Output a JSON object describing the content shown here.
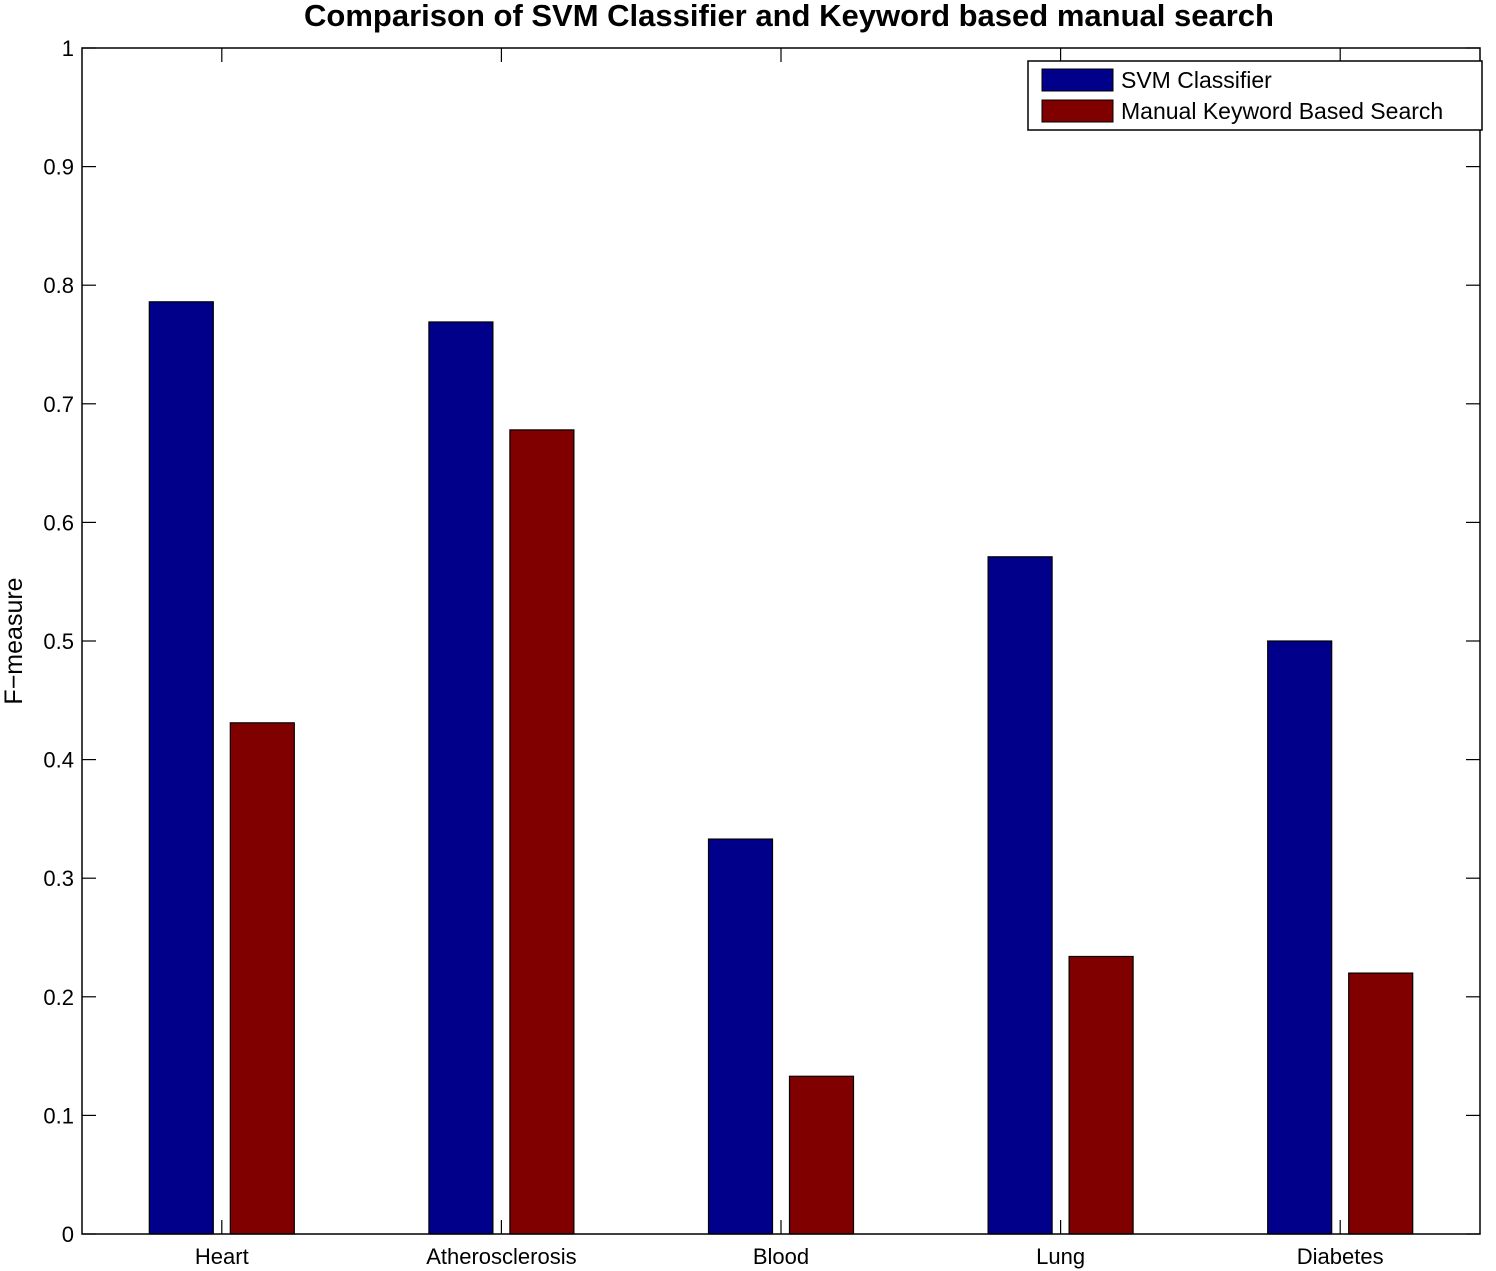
{
  "chart_data": {
    "type": "bar",
    "title": "Comparison of SVM Classifier and Keyword based manual search",
    "xlabel": "",
    "ylabel": "F−measure",
    "categories": [
      "Heart",
      "Atherosclerosis",
      "Blood",
      "Lung",
      "Diabetes"
    ],
    "series": [
      {
        "name": "SVM Classifier",
        "color": "#00008b",
        "values": [
          0.786,
          0.769,
          0.333,
          0.571,
          0.5
        ]
      },
      {
        "name": "Manual Keyword Based Search",
        "color": "#800000",
        "values": [
          0.431,
          0.678,
          0.133,
          0.234,
          0.22
        ]
      }
    ],
    "ylim": [
      0,
      1
    ],
    "yticks": [
      0,
      0.1,
      0.2,
      0.3,
      0.4,
      0.5,
      0.6,
      0.7,
      0.8,
      0.9,
      1
    ],
    "ytick_labels": [
      "0",
      "0.1",
      "0.2",
      "0.3",
      "0.4",
      "0.5",
      "0.6",
      "0.7",
      "0.8",
      "0.9",
      "1"
    ],
    "grid": false,
    "legend_position": "top-right"
  }
}
